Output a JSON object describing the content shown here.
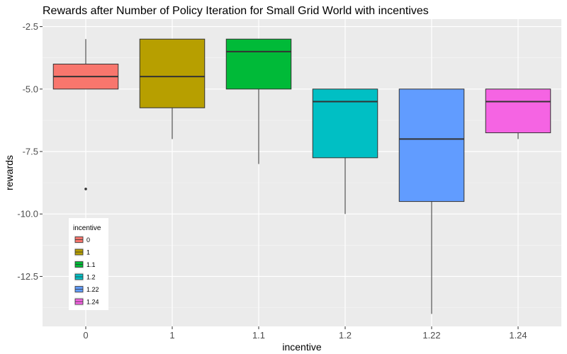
{
  "chart_data": {
    "type": "box",
    "title": "Rewards after Number of Policy Iteration for Small Grid World with incentives",
    "xlabel": "incentive",
    "ylabel": "rewards",
    "ylim": [
      -14.5,
      -2.2
    ],
    "y_ticks": [
      -2.5,
      -5.0,
      -7.5,
      -10.0,
      -12.5
    ],
    "y_tick_labels": [
      "-2.5",
      "-5.0",
      "-7.5",
      "-10.0",
      "-12.5"
    ],
    "categories": [
      "0",
      "1",
      "1.1",
      "1.2",
      "1.22",
      "1.24"
    ],
    "grid": true,
    "legend": {
      "title": "incentive",
      "position": "bottom-left-inside"
    },
    "series": [
      {
        "name": "0",
        "color": "#F8766D",
        "whisker_low": -5.0,
        "q1": -5.0,
        "median": -4.5,
        "q3": -4.0,
        "whisker_high": -3.0,
        "outliers": [
          -9.0
        ]
      },
      {
        "name": "1",
        "color": "#B79F00",
        "whisker_low": -7.0,
        "q1": -5.75,
        "median": -4.5,
        "q3": -3.0,
        "whisker_high": -3.0,
        "outliers": []
      },
      {
        "name": "1.1",
        "color": "#00BA38",
        "whisker_low": -8.0,
        "q1": -5.0,
        "median": -3.5,
        "q3": -3.0,
        "whisker_high": -3.0,
        "outliers": []
      },
      {
        "name": "1.2",
        "color": "#00BFC4",
        "whisker_low": -10.0,
        "q1": -7.75,
        "median": -5.5,
        "q3": -5.0,
        "whisker_high": -5.0,
        "outliers": []
      },
      {
        "name": "1.22",
        "color": "#619CFF",
        "whisker_low": -14.0,
        "q1": -9.5,
        "median": -7.0,
        "q3": -5.0,
        "whisker_high": -5.0,
        "outliers": []
      },
      {
        "name": "1.24",
        "color": "#F564E3",
        "whisker_low": -7.0,
        "q1": -6.75,
        "median": -5.5,
        "q3": -5.0,
        "whisker_high": -5.0,
        "outliers": []
      }
    ]
  }
}
